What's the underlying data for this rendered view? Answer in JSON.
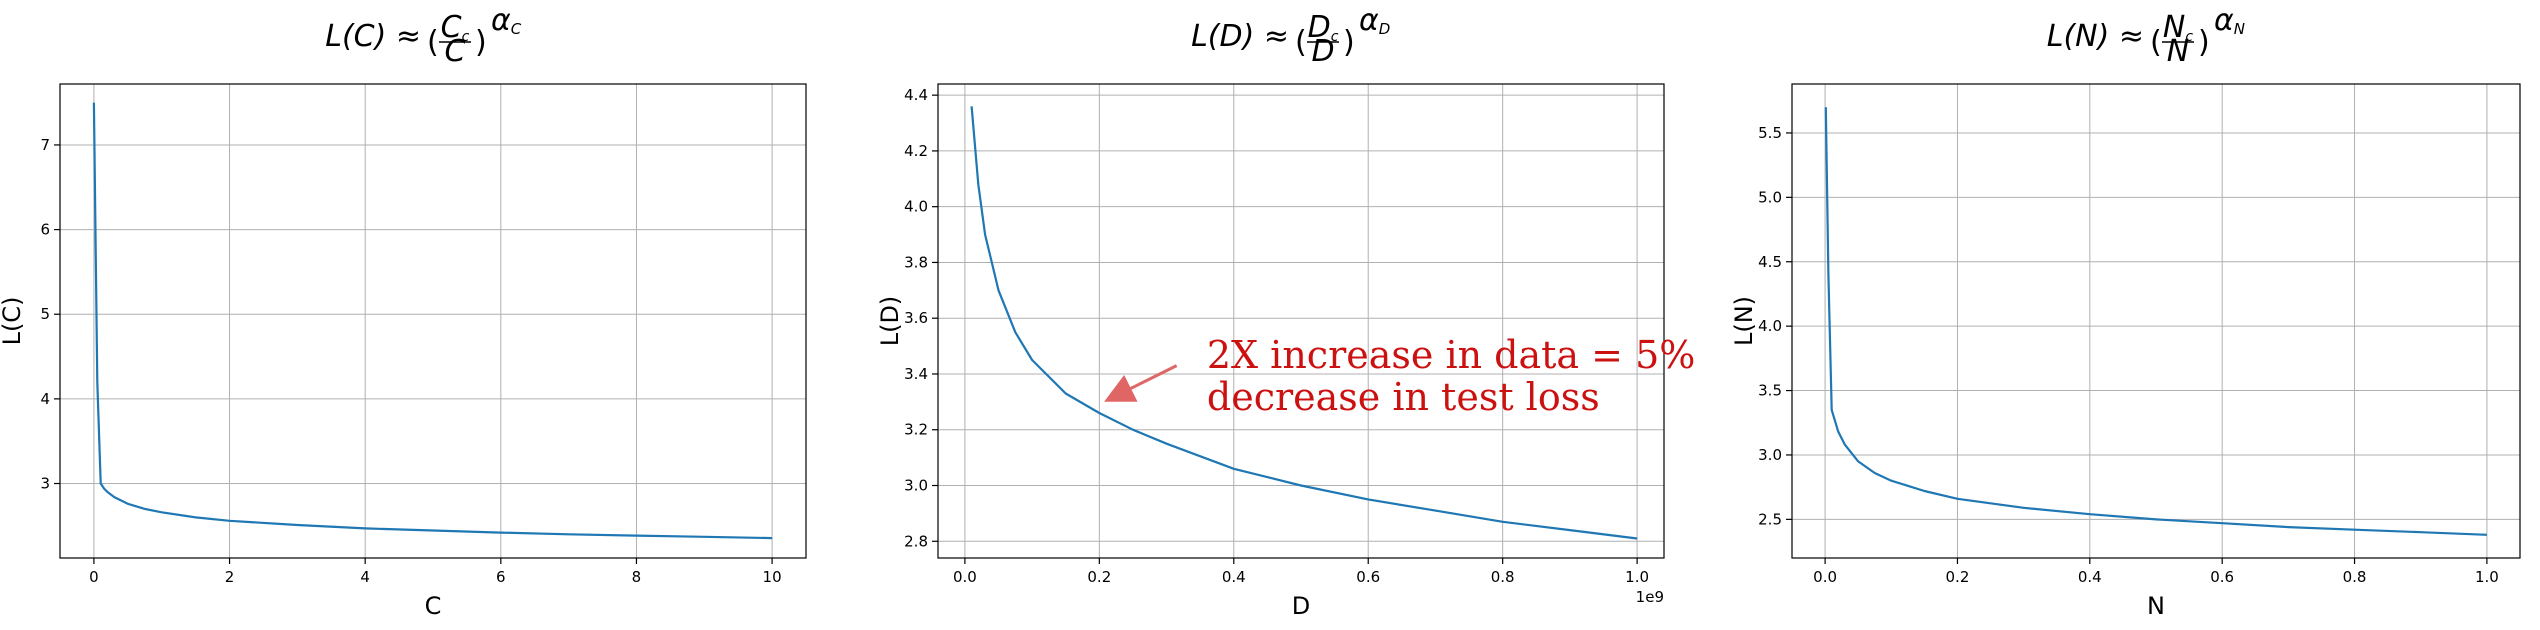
{
  "colors": {
    "line": "#1f77b4",
    "annotation_text": "#cc1111",
    "annotation_arrow": "#e06666",
    "grid": "#b0b0b0"
  },
  "chart_data": [
    {
      "type": "line",
      "title": "L(C) ≈ (Cc/C)^αC",
      "title_parts": {
        "lhs": "L(C) ≈",
        "num": "C",
        "num_sub": "c",
        "den": "C",
        "exp": "α",
        "exp_sub": "C"
      },
      "xlabel": "C",
      "ylabel": "L(C)",
      "xlim": [
        -0.5,
        10.5
      ],
      "ylim": [
        2.12,
        7.72
      ],
      "xticks": [
        0,
        2,
        4,
        6,
        8,
        10
      ],
      "xtick_labels": [
        "0",
        "2",
        "4",
        "6",
        "8",
        "10"
      ],
      "yticks": [
        3,
        4,
        5,
        6,
        7
      ],
      "ytick_labels": [
        "3",
        "4",
        "5",
        "6",
        "7"
      ],
      "x_offset_text": "",
      "grid": true,
      "series": [
        {
          "x": [
            0.0,
            0.05,
            0.1,
            0.15,
            0.2,
            0.3,
            0.5,
            0.75,
            1,
            1.5,
            2,
            3,
            4,
            5,
            6,
            7,
            8,
            9,
            10
          ],
          "y": [
            7.5,
            4.2,
            3.0,
            2.94,
            2.9,
            2.84,
            2.76,
            2.7,
            2.66,
            2.6,
            2.56,
            2.51,
            2.47,
            2.445,
            2.42,
            2.4,
            2.385,
            2.37,
            2.355
          ]
        }
      ]
    },
    {
      "type": "line",
      "title": "L(D) ≈ (Dc/D)^αD",
      "title_parts": {
        "lhs": "L(D) ≈",
        "num": "D",
        "num_sub": "c",
        "den": "D",
        "exp": "α",
        "exp_sub": "D"
      },
      "xlabel": "D",
      "ylabel": "L(D)",
      "xlim": [
        -0.04,
        1.04
      ],
      "ylim": [
        2.74,
        4.44
      ],
      "xticks": [
        0.0,
        0.2,
        0.4,
        0.6,
        0.8,
        1.0
      ],
      "xtick_labels": [
        "0.0",
        "0.2",
        "0.4",
        "0.6",
        "0.8",
        "1.0"
      ],
      "yticks": [
        2.8,
        3.0,
        3.2,
        3.4,
        3.6,
        3.8,
        4.0,
        4.2,
        4.4
      ],
      "ytick_labels": [
        "2.8",
        "3.0",
        "3.2",
        "3.4",
        "3.6",
        "3.8",
        "4.0",
        "4.2",
        "4.4"
      ],
      "x_offset_text": "1e9",
      "grid": true,
      "series": [
        {
          "x": [
            0.01,
            0.02,
            0.03,
            0.05,
            0.075,
            0.1,
            0.15,
            0.2,
            0.25,
            0.3,
            0.4,
            0.5,
            0.6,
            0.7,
            0.8,
            0.9,
            1.0
          ],
          "y": [
            4.36,
            4.08,
            3.9,
            3.7,
            3.55,
            3.45,
            3.33,
            3.26,
            3.2,
            3.15,
            3.06,
            3.0,
            2.95,
            2.91,
            2.87,
            2.84,
            2.81
          ]
        }
      ],
      "annotation": {
        "lines": [
          "2X increase in data = 5%",
          "decrease in test loss"
        ],
        "arrow_from": [
          0.315,
          3.43
        ],
        "arrow_to": [
          0.215,
          3.31
        ]
      }
    },
    {
      "type": "line",
      "title": "L(N) ≈ (Nc/N)^αN",
      "title_parts": {
        "lhs": "L(N) ≈",
        "num": "N",
        "num_sub": "c",
        "den": "N",
        "exp": "α",
        "exp_sub": "N"
      },
      "xlabel": "N",
      "ylabel": "L(N)",
      "xlim": [
        -0.05,
        1.05
      ],
      "ylim": [
        2.2,
        5.88
      ],
      "xticks": [
        0.0,
        0.2,
        0.4,
        0.6,
        0.8,
        1.0
      ],
      "xtick_labels": [
        "0.0",
        "0.2",
        "0.4",
        "0.6",
        "0.8",
        "1.0"
      ],
      "yticks": [
        2.5,
        3.0,
        3.5,
        4.0,
        4.5,
        5.0,
        5.5
      ],
      "ytick_labels": [
        "2.5",
        "3.0",
        "3.5",
        "4.0",
        "4.5",
        "5.0",
        "5.5"
      ],
      "x_offset_text": "",
      "grid": true,
      "series": [
        {
          "x": [
            0.001,
            0.005,
            0.01,
            0.02,
            0.03,
            0.05,
            0.075,
            0.1,
            0.15,
            0.2,
            0.3,
            0.4,
            0.5,
            0.6,
            0.7,
            0.8,
            0.9,
            1.0
          ],
          "y": [
            5.7,
            4.4,
            3.35,
            3.18,
            3.08,
            2.95,
            2.86,
            2.8,
            2.72,
            2.66,
            2.59,
            2.54,
            2.5,
            2.47,
            2.44,
            2.42,
            2.4,
            2.38
          ]
        }
      ]
    }
  ]
}
